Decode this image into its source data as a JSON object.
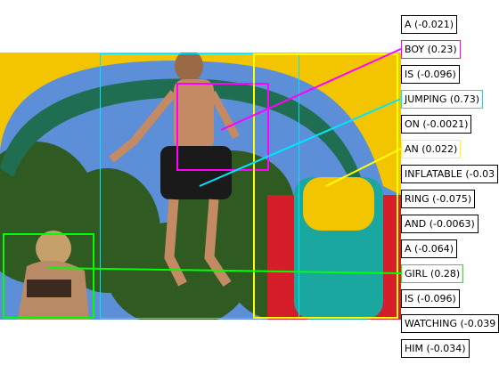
{
  "tokens": [
    {
      "word": "A",
      "score": "(-0.021)",
      "label": "A (-0.021)",
      "color": "#000000"
    },
    {
      "word": "BOY",
      "score": "(0.23)",
      "label": "BOY (0.23)",
      "color": "#ff00ff"
    },
    {
      "word": "IS",
      "score": "(-0.096)",
      "label": "IS (-0.096)",
      "color": "#000000"
    },
    {
      "word": "JUMPING",
      "score": "(0.73)",
      "label": "JUMPING (0.73)",
      "color": "#00e5ff"
    },
    {
      "word": "ON",
      "score": "(-0.0021)",
      "label": "ON (-0.0021)",
      "color": "#000000"
    },
    {
      "word": "AN",
      "score": "(0.022)",
      "label": "AN (0.022)",
      "color": "#ffff00"
    },
    {
      "word": "INFLATABLE",
      "score": "(-0.03",
      "label": "INFLATABLE (-0.03",
      "color": "#000000"
    },
    {
      "word": "RING",
      "score": "(-0.075)",
      "label": "RING (-0.075)",
      "color": "#000000"
    },
    {
      "word": "AND",
      "score": "(-0.0063)",
      "label": "AND (-0.0063)",
      "color": "#000000"
    },
    {
      "word": "A",
      "score": "(-0.064)",
      "label": "A (-0.064)",
      "color": "#000000"
    },
    {
      "word": "GIRL",
      "score": "(0.28)",
      "label": "GIRL (0.28)",
      "color": "#00ff00"
    },
    {
      "word": "IS",
      "score": "(-0.096)",
      "label": "IS (-0.096)",
      "color": "#000000"
    },
    {
      "word": "WATCHING",
      "score": "(-0.039",
      "label": "WATCHING (-0.039",
      "color": "#000000"
    },
    {
      "word": "HIM",
      "score": "(-0.034)",
      "label": "HIM (-0.034)",
      "color": "#000000"
    }
  ],
  "colors": {
    "boy": "#ff00ff",
    "jumping": "#00e5ff",
    "an": "#ffff00",
    "girl": "#00ff00"
  }
}
